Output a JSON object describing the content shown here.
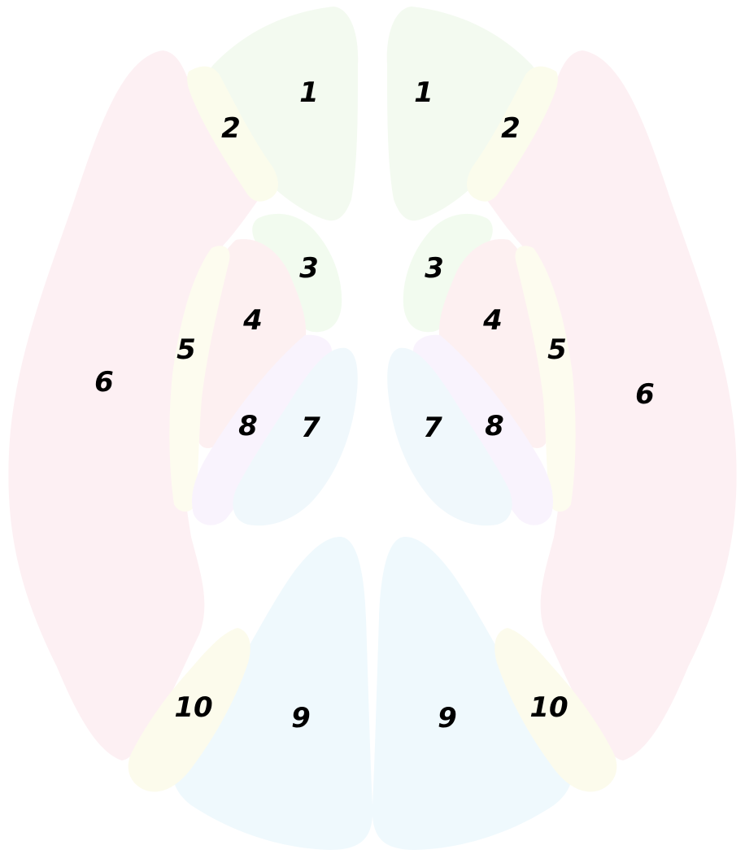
{
  "regions": [
    {
      "id": "left-1",
      "label": "1",
      "color": "#f3faf0"
    },
    {
      "id": "right-1",
      "label": "1",
      "color": "#f3faf0"
    },
    {
      "id": "left-2",
      "label": "2",
      "color": "#fbfcec"
    },
    {
      "id": "right-2",
      "label": "2",
      "color": "#fbfcec"
    },
    {
      "id": "left-3",
      "label": "3",
      "color": "#f2fbef"
    },
    {
      "id": "right-3",
      "label": "3",
      "color": "#f2fbef"
    },
    {
      "id": "left-4",
      "label": "4",
      "color": "#fdf0f1"
    },
    {
      "id": "right-4",
      "label": "4",
      "color": "#fdf0f1"
    },
    {
      "id": "left-5",
      "label": "5",
      "color": "#fdfcef"
    },
    {
      "id": "right-5",
      "label": "5",
      "color": "#fdfcef"
    },
    {
      "id": "left-6",
      "label": "6",
      "color": "#fdf0f3"
    },
    {
      "id": "right-6",
      "label": "6",
      "color": "#fdf0f3"
    },
    {
      "id": "left-7",
      "label": "7",
      "color": "#f0f8fc"
    },
    {
      "id": "right-7",
      "label": "7",
      "color": "#f0f8fc"
    },
    {
      "id": "left-8",
      "label": "8",
      "color": "#f9f3fd"
    },
    {
      "id": "right-8",
      "label": "8",
      "color": "#f9f3fd"
    },
    {
      "id": "left-9",
      "label": "9",
      "color": "#eff9fd"
    },
    {
      "id": "right-9",
      "label": "9",
      "color": "#eff9fd"
    },
    {
      "id": "left-10",
      "label": "10",
      "color": "#fcfbec"
    },
    {
      "id": "right-10",
      "label": "10",
      "color": "#fcfbec"
    }
  ]
}
